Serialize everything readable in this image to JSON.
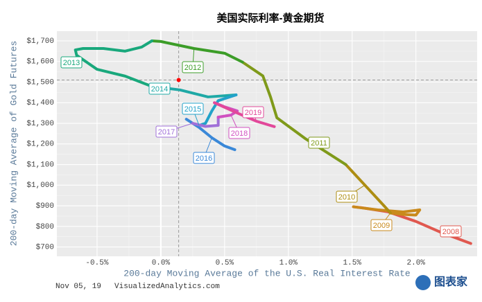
{
  "chart_data": {
    "type": "line",
    "title": "美国实际利率-黄金期货",
    "x_label": "200-day Moving Average of the U.S. Real Interest Rate",
    "y_label": "200-day Moving Average of Gold Futures",
    "xlim": [
      -0.815,
      2.48
    ],
    "ylim": [
      655,
      1747
    ],
    "xticks": [
      {
        "value": -0.5,
        "label": "-0.5%"
      },
      {
        "value": 0,
        "label": "0.0%"
      },
      {
        "value": 0.5,
        "label": "0.5%"
      },
      {
        "value": 1,
        "label": "1.0%"
      },
      {
        "value": 1.5,
        "label": "1.5%"
      },
      {
        "value": 2,
        "label": "2.0%"
      }
    ],
    "yticks": [
      {
        "value": 700,
        "label": "$700"
      },
      {
        "value": 800,
        "label": "$800"
      },
      {
        "value": 900,
        "label": "$900"
      },
      {
        "value": 1000,
        "label": "$1,000"
      },
      {
        "value": 1100,
        "label": "$1,100"
      },
      {
        "value": 1200,
        "label": "$1,200"
      },
      {
        "value": 1300,
        "label": "$1,300"
      },
      {
        "value": 1400,
        "label": "$1,400"
      },
      {
        "value": 1500,
        "label": "$1,500"
      },
      {
        "value": 1600,
        "label": "$1,600"
      },
      {
        "value": 1700,
        "label": "$1,700"
      }
    ],
    "grid": true,
    "series": [
      {
        "name": "2008",
        "color": "#e0584f",
        "x": [
          2.43,
          2.2,
          2.0,
          1.78,
          1.57,
          1.51
        ],
        "values": [
          717,
          770,
          824,
          871,
          891,
          895
        ]
      },
      {
        "name": "2009",
        "color": "#c98a1c",
        "x": [
          1.51,
          1.7,
          1.9,
          2.03,
          2.0,
          1.9,
          1.8
        ],
        "values": [
          895,
          880,
          870,
          880,
          855,
          858,
          865
        ]
      },
      {
        "name": "2010",
        "color": "#ad8d12",
        "x": [
          1.8,
          1.75,
          1.6,
          1.45
        ],
        "values": [
          865,
          900,
          1000,
          1100
        ]
      },
      {
        "name": "2011",
        "color": "#7f9a1a",
        "x": [
          1.45,
          1.13,
          0.91,
          0.86,
          0.8,
          0.64
        ],
        "values": [
          1100,
          1227,
          1327,
          1428,
          1530,
          1597
        ]
      },
      {
        "name": "2012",
        "color": "#3c9d28",
        "x": [
          0.64,
          0.5,
          0.26,
          0,
          -0.07
        ],
        "values": [
          1597,
          1640,
          1663,
          1697,
          1700
        ]
      },
      {
        "name": "2013",
        "color": "#19a87c",
        "x": [
          -0.07,
          -0.15,
          -0.28,
          -0.45,
          -0.61,
          -0.67,
          -0.66,
          -0.5,
          -0.28,
          -0.07
        ],
        "values": [
          1700,
          1670,
          1650,
          1663,
          1663,
          1656,
          1630,
          1562,
          1529,
          1479
        ]
      },
      {
        "name": "2014",
        "color": "#1fa9a6",
        "x": [
          -0.07,
          0.15,
          0.37,
          0.59
        ],
        "values": [
          1479,
          1462,
          1428,
          1438
        ]
      },
      {
        "name": "2015",
        "color": "#22a2c9",
        "x": [
          0.59,
          0.45,
          0.4,
          0.35,
          0.3
        ],
        "values": [
          1438,
          1410,
          1360,
          1300,
          1290
        ]
      },
      {
        "name": "2016",
        "color": "#3a88d8",
        "x": [
          0.2,
          0.3,
          0.4,
          0.5,
          0.58
        ],
        "values": [
          1320,
          1280,
          1230,
          1190,
          1172
        ]
      },
      {
        "name": "2017",
        "color": "#a070d8",
        "x": [
          0.25,
          0.35,
          0.45,
          0.45
        ],
        "values": [
          1300,
          1285,
          1290,
          1330
        ]
      },
      {
        "name": "2018",
        "color": "#d050c0",
        "x": [
          0.45,
          0.55,
          0.6,
          0.5,
          0.42
        ],
        "values": [
          1330,
          1340,
          1360,
          1380,
          1400
        ]
      },
      {
        "name": "2019",
        "color": "#e2489a",
        "x": [
          0.42,
          0.6,
          0.75,
          0.89
        ],
        "values": [
          1400,
          1350,
          1310,
          1284
        ]
      }
    ],
    "current": {
      "x": 0.14,
      "y": 1510,
      "color": "#ff0000"
    },
    "footer_date": "Nov 05, 19",
    "footer_source": "VisualizedAnalytics.com",
    "logo_text": "图表家"
  }
}
